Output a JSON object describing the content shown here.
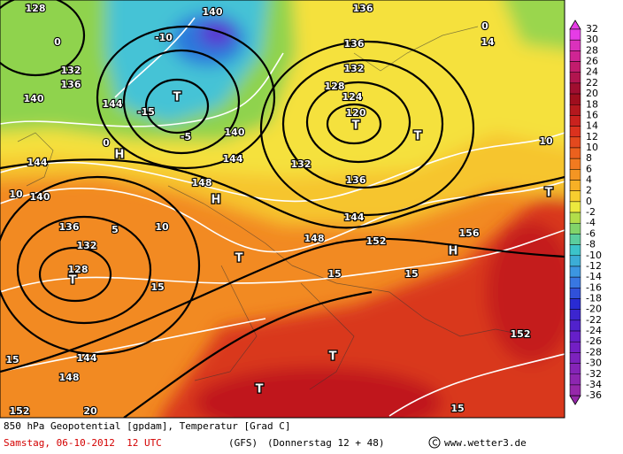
{
  "map_labels": [
    "128",
    "140",
    "136",
    "-10",
    "0",
    "132",
    "136",
    "140",
    "144",
    "T",
    "-15",
    "-5",
    "140",
    "144",
    "H",
    "0",
    "144",
    "136",
    "132",
    "128",
    "124",
    "120",
    "T",
    "T",
    "132",
    "136",
    "148",
    "H",
    "144",
    "10",
    "140",
    "136",
    "132",
    "128",
    "T",
    "5",
    "10",
    "15",
    "T",
    "148",
    "152",
    "H",
    "156",
    "15",
    "15",
    "152",
    "T",
    "15",
    "144",
    "148",
    "152",
    "20",
    "T",
    "15",
    "10",
    "T",
    "0",
    "14"
  ],
  "colorbar": {
    "labels": [
      32,
      30,
      28,
      26,
      24,
      22,
      20,
      18,
      16,
      14,
      12,
      10,
      8,
      6,
      4,
      2,
      0,
      -2,
      -4,
      -6,
      -8,
      -10,
      -12,
      -14,
      -16,
      -18,
      -20,
      -22,
      -24,
      -26,
      -28,
      -30,
      -32,
      -34,
      -36
    ]
  },
  "footer": {
    "title": "850 hPa Geopotential [gpdam], Temperatur [Grad C]",
    "date": "Samstag, 06-10-2012  12 UTC",
    "model": "(GFS)",
    "forecast": "(Donnerstag 12 + 48)",
    "site": "www.wetter3.de"
  }
}
